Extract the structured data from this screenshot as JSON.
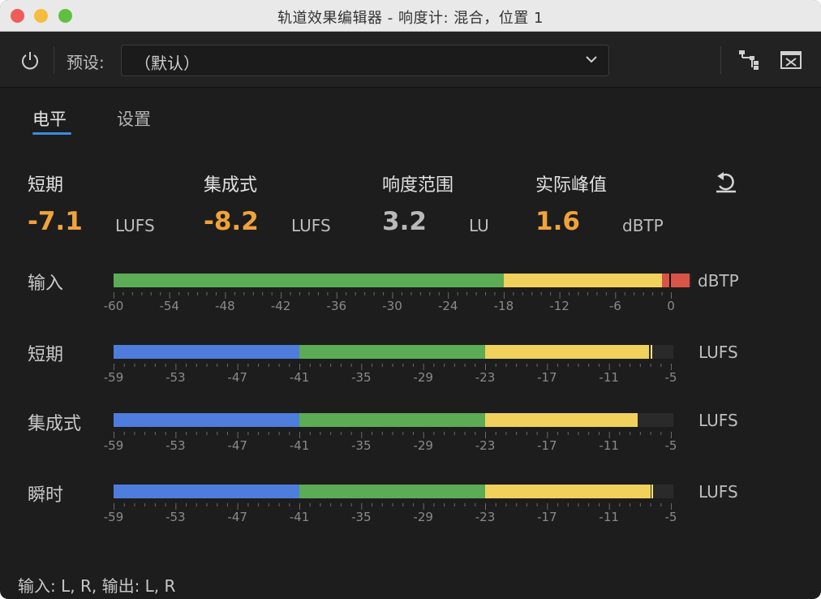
{
  "window": {
    "title": "轨道效果编辑器 - 响度计: 混合，位置 1",
    "controls": {
      "close": "close-button",
      "minimize": "minimize-button",
      "maximize": "maximize-button"
    }
  },
  "toolbar": {
    "power_icon": "power-icon",
    "preset_label": "预设:",
    "preset_value": "（默认）",
    "routing_icon": "routing-icon",
    "close_effect_icon": "close-box-icon"
  },
  "tabs": [
    {
      "label": "电平",
      "active": true
    },
    {
      "label": "设置",
      "active": false
    }
  ],
  "stats": [
    {
      "label": "短期",
      "value": "-7.1",
      "unit": "LUFS",
      "color": "#f0a33a"
    },
    {
      "label": "集成式",
      "value": "-8.2",
      "unit": "LUFS",
      "color": "#f0a33a"
    },
    {
      "label": "响度范围",
      "value": "3.2",
      "unit": "LU",
      "color": "#b9b9b9"
    },
    {
      "label": "实际峰值",
      "value": "1.6",
      "unit": "dBTP",
      "color": "#f0a33a"
    }
  ],
  "reset_icon": "reset-icon",
  "meters": [
    {
      "label": "输入",
      "unit": "dBTP",
      "scale": [
        -60,
        0
      ],
      "ticks": [
        "-60",
        "-54",
        "-48",
        "-42",
        "-36",
        "-30",
        "-24",
        "-18",
        "-12",
        "-6",
        "0"
      ],
      "segments": [
        {
          "from": -60,
          "to": -18,
          "color": "#5cab55"
        },
        {
          "from": -18,
          "to": -1,
          "color": "#f0d15c"
        },
        {
          "from": -1,
          "to": 2,
          "color": "#d95447"
        }
      ],
      "peak_hold": -0.2
    },
    {
      "label": "短期",
      "unit": "LUFS",
      "scale": [
        -59,
        -5
      ],
      "ticks": [
        "-59",
        "-53",
        "-47",
        "-41",
        "-35",
        "-29",
        "-23",
        "-17",
        "-11",
        "-5"
      ],
      "segments": [
        {
          "from": -59,
          "to": -41,
          "color": "#4e7ddd"
        },
        {
          "from": -41,
          "to": -23,
          "color": "#5cab55"
        },
        {
          "from": -23,
          "to": -7.1,
          "color": "#f0d15c"
        }
      ],
      "peak_hold": -7.0
    },
    {
      "label": "集成式",
      "unit": "LUFS",
      "scale": [
        -59,
        -5
      ],
      "ticks": [
        "-59",
        "-53",
        "-47",
        "-41",
        "-35",
        "-29",
        "-23",
        "-17",
        "-11",
        "-5"
      ],
      "segments": [
        {
          "from": -59,
          "to": -41,
          "color": "#4e7ddd"
        },
        {
          "from": -41,
          "to": -23,
          "color": "#5cab55"
        },
        {
          "from": -23,
          "to": -8.2,
          "color": "#f0d15c"
        }
      ],
      "peak_hold": null
    },
    {
      "label": "瞬时",
      "unit": "LUFS",
      "scale": [
        -59,
        -5
      ],
      "ticks": [
        "-59",
        "-53",
        "-47",
        "-41",
        "-35",
        "-29",
        "-23",
        "-17",
        "-11",
        "-5"
      ],
      "segments": [
        {
          "from": -59,
          "to": -41,
          "color": "#4e7ddd"
        },
        {
          "from": -41,
          "to": -23,
          "color": "#5cab55"
        },
        {
          "from": -23,
          "to": -7.0,
          "color": "#f0d15c"
        }
      ],
      "peak_hold": -6.9
    }
  ],
  "footer": {
    "io": "输入: L, R,   输出: L, R"
  }
}
